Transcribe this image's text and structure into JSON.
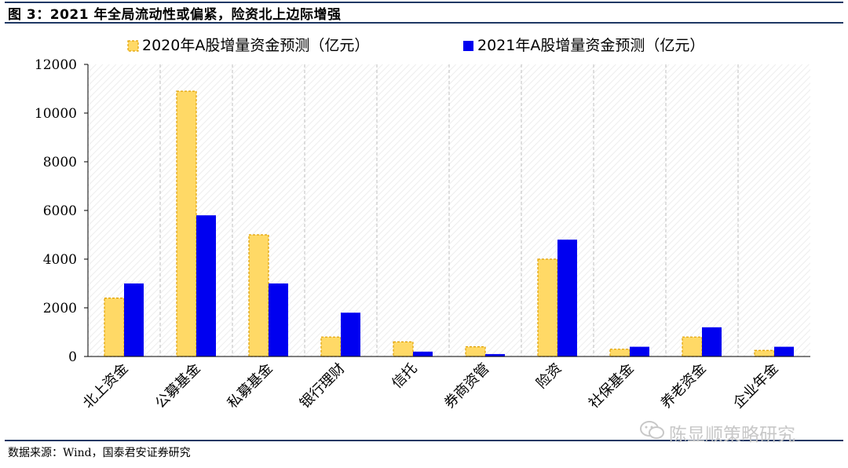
{
  "figure": {
    "title": "图 3：2021 年全局流动性或偏紧，险资北上边际增强",
    "source": "数据来源：Wind，国泰君安证券研究",
    "watermark": "陈显顺策略研究"
  },
  "colors": {
    "series_2020": "#FFD966",
    "series_2020_border": "#E0A000",
    "series_2021": "#0000F0",
    "rule": "#1f3864",
    "plot_bg": "#F6F6F6",
    "grid": "#BFBFBF"
  },
  "chart_data": {
    "type": "bar",
    "categories": [
      "北上资金",
      "公募基金",
      "私募基金",
      "银行理财",
      "信托",
      "券商资管",
      "险资",
      "社保基金",
      "养老资金",
      "企业年金"
    ],
    "series": [
      {
        "name": "2020年A股增量资金预测（亿元）",
        "values": [
          2400,
          10900,
          5000,
          800,
          600,
          400,
          4000,
          300,
          800,
          250
        ]
      },
      {
        "name": "2021年A股增量资金预测（亿元）",
        "values": [
          3000,
          5800,
          3000,
          1800,
          200,
          100,
          4800,
          400,
          1200,
          400
        ]
      }
    ],
    "ylim": [
      0,
      12000
    ],
    "yticks": [
      0,
      2000,
      4000,
      6000,
      8000,
      10000,
      12000
    ],
    "xlabel": "",
    "ylabel": "",
    "legend_position": "top",
    "grid": "vertical-dashed"
  }
}
